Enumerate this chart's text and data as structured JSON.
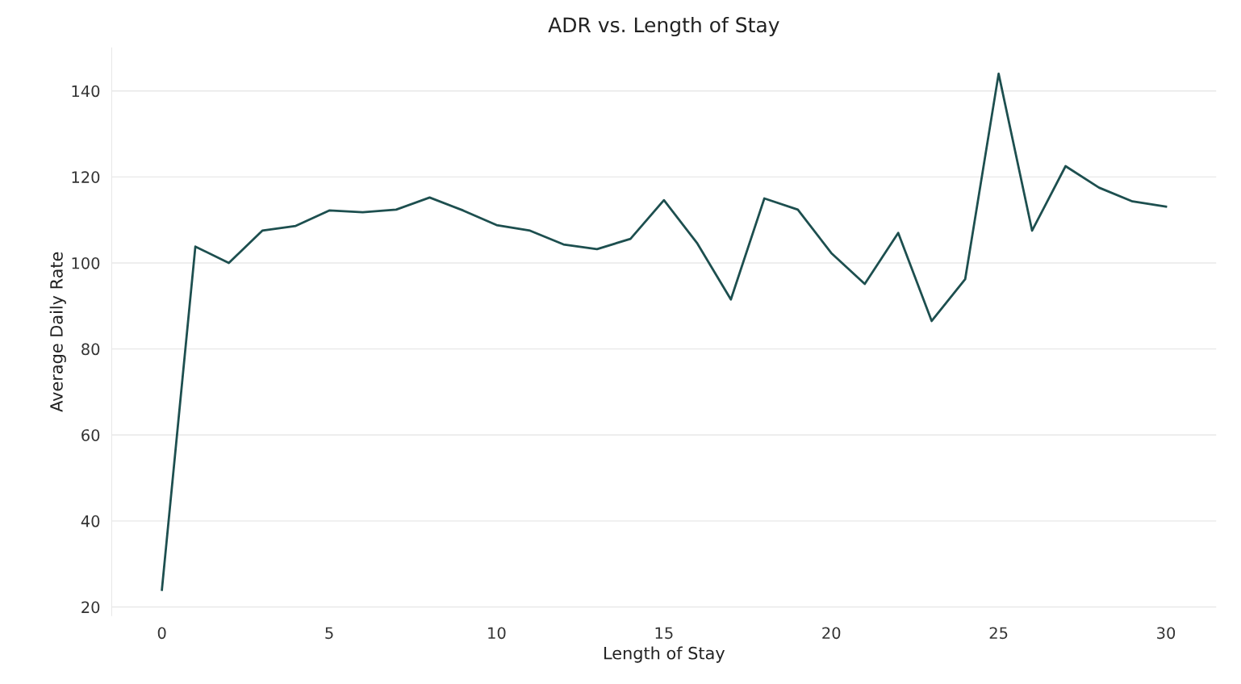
{
  "chart_data": {
    "type": "line",
    "title": "ADR vs. Length of Stay",
    "xlabel": "Length of Stay",
    "ylabel": "Average Daily Rate",
    "x": [
      0,
      1,
      2,
      3,
      4,
      5,
      6,
      7,
      8,
      9,
      10,
      11,
      12,
      13,
      14,
      15,
      16,
      17,
      18,
      19,
      20,
      21,
      22,
      23,
      24,
      25,
      26,
      27,
      28,
      29,
      30
    ],
    "series": [
      {
        "color": "#1d4f4f",
        "values": [
          24,
          103.8,
          100,
          107.5,
          108.6,
          112.2,
          111.8,
          112.4,
          115.2,
          112.2,
          108.8,
          107.5,
          104.3,
          103.2,
          105.6,
          114.6,
          104.5,
          91.5,
          115.0,
          112.4,
          102.3,
          95.1,
          107,
          86.5,
          96.2,
          144,
          107.5,
          122.5,
          117.5,
          114.3,
          113.1
        ]
      }
    ],
    "xlim": [
      -1.5,
      31.5
    ],
    "xticks": [
      0,
      5,
      10,
      15,
      20,
      25,
      30
    ],
    "ylim": [
      18,
      150
    ],
    "yticks": [
      20,
      40,
      60,
      80,
      100,
      120,
      140
    ],
    "grid": "y",
    "legend": false,
    "marker": "none",
    "line_style": "solid"
  }
}
